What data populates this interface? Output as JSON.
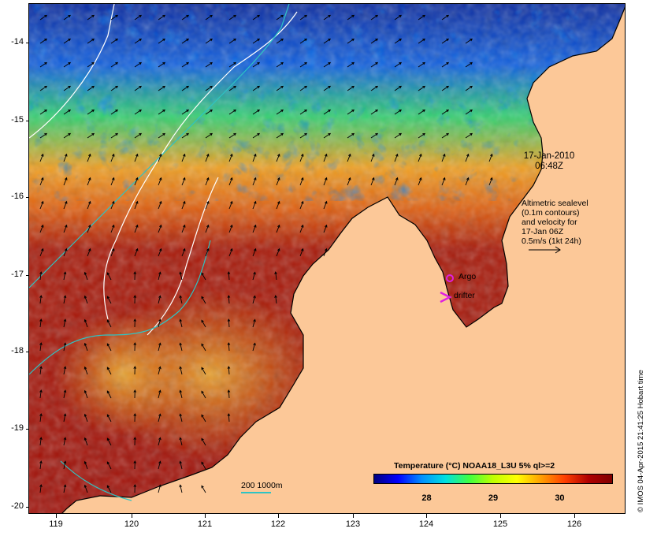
{
  "map": {
    "colors": {
      "land": "#fcc898",
      "coast": "#000000",
      "sea_level_contour": "#ffffff",
      "depth_contour": "#2ec4c4",
      "argo": "#e020e0",
      "drifter": "#e020e0",
      "velocity_arrow": "#000000"
    },
    "axes": {
      "lat_ticks": [
        "-14",
        "-15",
        "-16",
        "-17",
        "-18",
        "-19",
        "-20"
      ],
      "lon_ticks": [
        "119",
        "120",
        "121",
        "122",
        "123",
        "124",
        "125",
        "126"
      ],
      "lat_range": [
        -20.1,
        -13.5
      ],
      "lon_range": [
        118.6,
        126.7
      ]
    },
    "annotations": {
      "date": "17-Jan-2010",
      "time": "06:48Z",
      "altimetry_lines": [
        "Altimetric sealevel",
        "(0.1m contours)",
        "and velocity for",
        "17-Jan 06Z",
        "0.5m/s (1kt 24h)"
      ],
      "argo_label": "Argo",
      "drifter_label": "drifter"
    },
    "colorbar": {
      "title": "Temperature (°C) NOAA18_L3U 5% ql>=2",
      "ticks": [
        "28",
        "29",
        "30"
      ],
      "tick_values": [
        28,
        29,
        30
      ],
      "range": [
        27.2,
        30.8
      ],
      "stops": [
        "#000080",
        "#0000ff",
        "#0090ff",
        "#00e0e0",
        "#40ff40",
        "#c0ff00",
        "#ffff00",
        "#ffa000",
        "#ff4000",
        "#b00000",
        "#800000"
      ]
    },
    "contour_scale": {
      "label": "200  1000m"
    },
    "credit": "© IMOS 04-Apr-2015 21:41:25 Hobart time"
  }
}
